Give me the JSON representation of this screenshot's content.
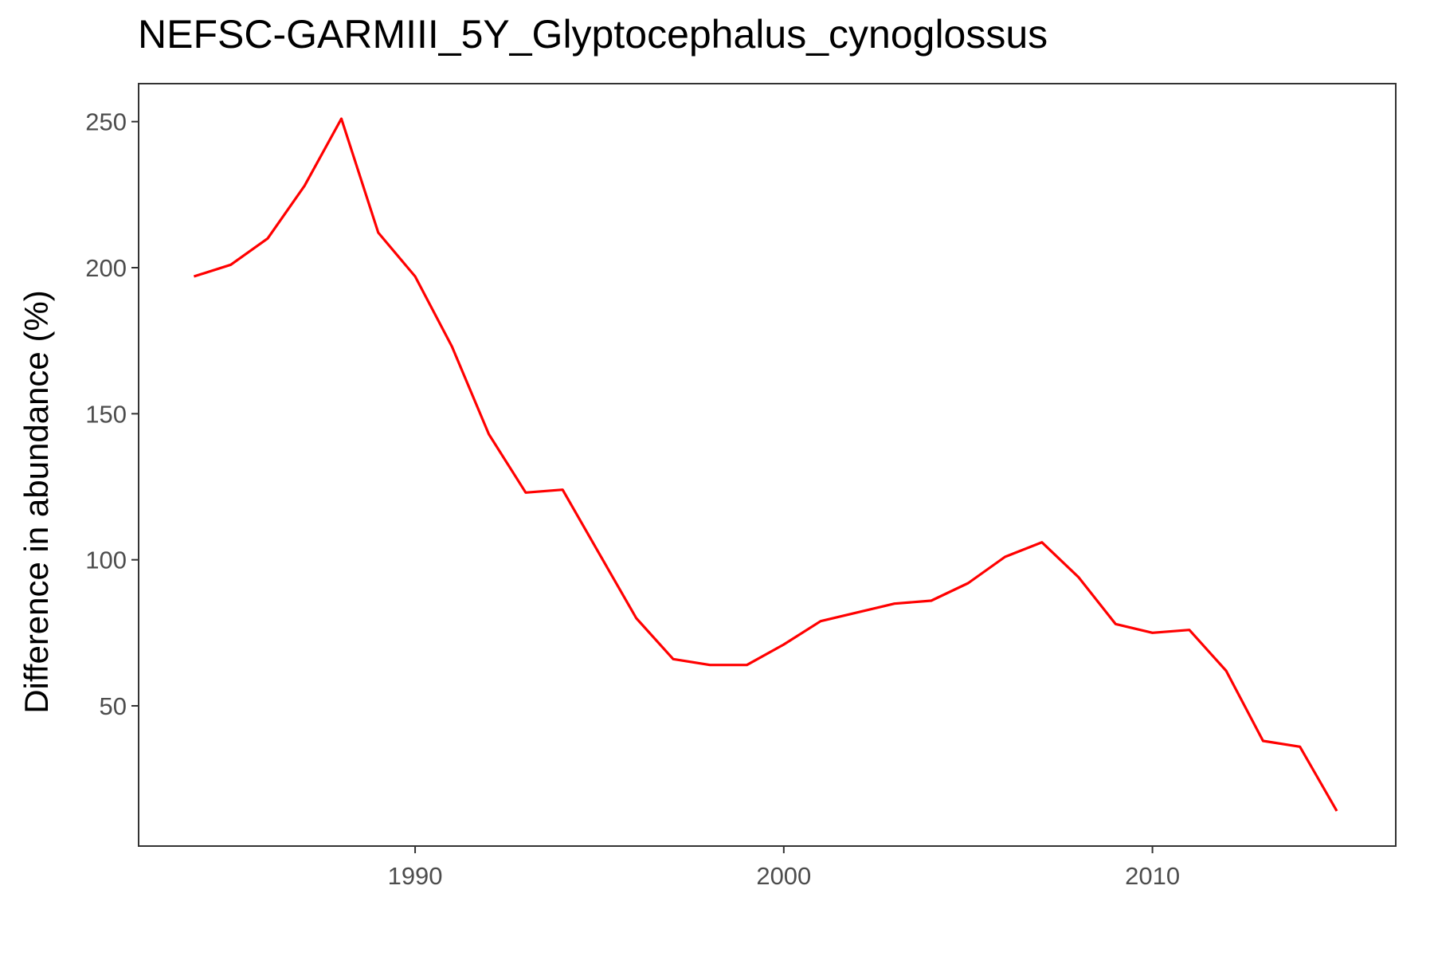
{
  "chart_data": {
    "type": "line",
    "title": "NEFSC-GARMIII_5Y_Glyptocephalus_cynoglossus",
    "xlabel": "",
    "ylabel": "Difference in abundance (%)",
    "xlim": [
      1982.5,
      2016.6
    ],
    "ylim": [
      2,
      263
    ],
    "x_ticks": [
      1990,
      2000,
      2010
    ],
    "y_ticks": [
      50,
      100,
      150,
      200,
      250
    ],
    "grid": false,
    "legend": "none",
    "line_color": "#ff0000",
    "series": [
      {
        "x": [
          1984,
          1985,
          1986,
          1987,
          1988,
          1989,
          1990,
          1991,
          1992,
          1993,
          1994,
          1995,
          1996,
          1997,
          1998,
          1999,
          2000,
          2001,
          2002,
          2003,
          2004,
          2005,
          2006,
          2007,
          2008,
          2009,
          2010,
          2011,
          2012,
          2013,
          2014,
          2015
        ],
        "values": [
          197,
          201,
          210,
          228,
          251,
          212,
          197,
          173,
          143,
          123,
          124,
          102,
          80,
          66,
          64,
          64,
          71,
          79,
          82,
          85,
          86,
          92,
          101,
          106,
          94,
          78,
          75,
          76,
          62,
          38,
          36,
          14
        ]
      }
    ]
  }
}
